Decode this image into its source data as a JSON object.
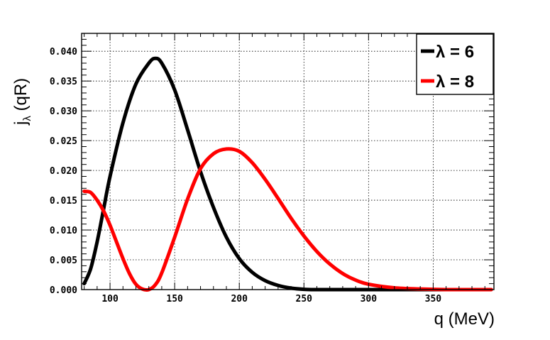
{
  "chart_data": {
    "type": "line",
    "xlabel": "q (MeV)",
    "ylabel_main": "j",
    "ylabel_sub": "λ",
    "ylabel_rest": " (qR)",
    "xlim": [
      78,
      397
    ],
    "ylim": [
      0,
      0.043
    ],
    "x_ticks": [
      100,
      150,
      200,
      250,
      300,
      350
    ],
    "y_ticks": [
      "0.000",
      "0.005",
      "0.010",
      "0.015",
      "0.020",
      "0.025",
      "0.030",
      "0.035",
      "0.040"
    ],
    "grid": true,
    "legend_position": "top-right",
    "series": [
      {
        "name": "λ = 6",
        "color": "#000000",
        "x": [
          80,
          85,
          90,
          95,
          100,
          110,
          120,
          130,
          135,
          140,
          150,
          160,
          170,
          180,
          190,
          200,
          210,
          220,
          230,
          240,
          250,
          260,
          270,
          280,
          290,
          300,
          320,
          340,
          360,
          375
        ],
        "y": [
          0.001,
          0.0035,
          0.008,
          0.0135,
          0.019,
          0.028,
          0.0345,
          0.038,
          0.0388,
          0.038,
          0.0335,
          0.0268,
          0.0198,
          0.0138,
          0.0088,
          0.0052,
          0.0029,
          0.0015,
          0.0007,
          0.00025,
          5e-05,
          0.0,
          0.0,
          0.0,
          0.0,
          0.0,
          0.0,
          0.0,
          0.0,
          0.0
        ]
      },
      {
        "name": "λ = 8",
        "color": "#ff0000",
        "x": [
          80,
          85,
          90,
          95,
          100,
          105,
          110,
          115,
          120,
          125,
          130,
          135,
          140,
          150,
          160,
          170,
          180,
          190,
          200,
          210,
          220,
          230,
          240,
          250,
          260,
          270,
          280,
          290,
          300,
          320,
          340,
          360,
          380,
          395
        ],
        "y": [
          0.0165,
          0.0163,
          0.015,
          0.0132,
          0.0108,
          0.008,
          0.0052,
          0.0027,
          0.0009,
          0.0001,
          0.0,
          0.0008,
          0.0028,
          0.0088,
          0.0152,
          0.0203,
          0.0228,
          0.0236,
          0.0232,
          0.0213,
          0.0185,
          0.0153,
          0.012,
          0.009,
          0.0064,
          0.0043,
          0.0027,
          0.0016,
          0.0009,
          0.0003,
          0.0001,
          0.0,
          0.0,
          0.0
        ]
      }
    ]
  }
}
